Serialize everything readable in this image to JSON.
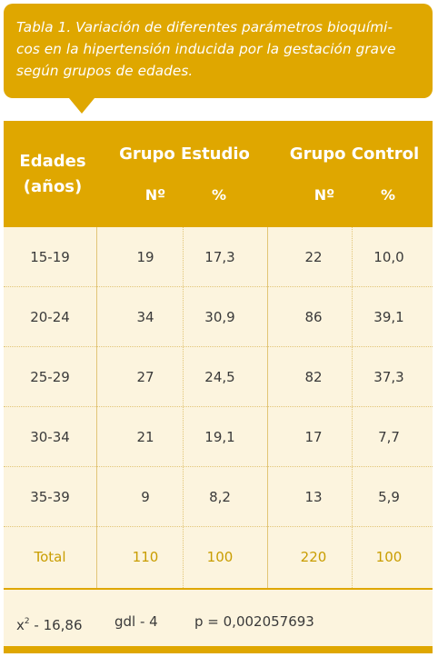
{
  "caption": "Tabla 1. Variación de diferentes parámetros bioquími-cos en la hipertensión inducida por la gestación grave según grupos de edades.",
  "caption_lines": [
    "Tabla 1. Variación de diferentes parámetros bioquími-",
    "cos en la hipertensión inducida por la gestación grave",
    "según grupos de edades."
  ],
  "header": {
    "edades_line1": "Edades",
    "edades_line2": "(años)",
    "grupo_estudio": "Grupo Estudio",
    "grupo_control": "Grupo Control",
    "n_label": "Nº",
    "pct_label": "%"
  },
  "rows": [
    {
      "edad": "15-19",
      "est_n": "19",
      "est_pct": "17,3",
      "ctl_n": "22",
      "ctl_pct": "10,0"
    },
    {
      "edad": "20-24",
      "est_n": "34",
      "est_pct": "30,9",
      "ctl_n": "86",
      "ctl_pct": "39,1"
    },
    {
      "edad": "25-29",
      "est_n": "27",
      "est_pct": "24,5",
      "ctl_n": "82",
      "ctl_pct": "37,3"
    },
    {
      "edad": "30-34",
      "est_n": "21",
      "est_pct": "19,1",
      "ctl_n": "17",
      "ctl_pct": "7,7"
    },
    {
      "edad": "35-39",
      "est_n": "9",
      "est_pct": "8,2",
      "ctl_n": "13",
      "ctl_pct": "5,9"
    },
    {
      "edad": "Total",
      "est_n": "110",
      "est_pct": "100",
      "ctl_n": "220",
      "ctl_pct": "100"
    }
  ],
  "footer": {
    "chi_symbol": "x",
    "chi_sup": "2",
    "chi_value": " - 16,86",
    "gdl": "gdl - 4",
    "p": "p = 0,002057693"
  },
  "colors": {
    "accent": "#dfa700",
    "body_bg": "#fcf4de",
    "total_text": "#c99d00"
  }
}
